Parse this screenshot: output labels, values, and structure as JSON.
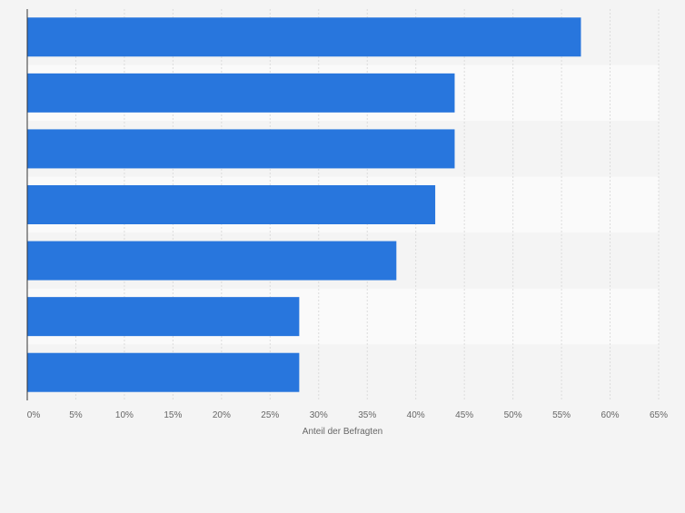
{
  "colors": {
    "background": "#f4f4f4",
    "plot_band_light": "#fafafa",
    "plot_band_dark": "#f4f4f4",
    "bar": "#2876dd",
    "grid": "#dcdcdc",
    "axis": "#333333",
    "tick_text": "#666666"
  },
  "chart_data": {
    "type": "bar",
    "orientation": "horizontal",
    "title": "",
    "xlabel": "Anteil der Befragten",
    "ylabel": "",
    "categories": [
      "",
      "",
      "",
      "",
      "",
      "",
      ""
    ],
    "values": [
      57,
      44,
      44,
      42,
      38,
      28,
      28
    ],
    "xlim": [
      0,
      65
    ],
    "xticks": [
      0,
      5,
      10,
      15,
      20,
      25,
      30,
      35,
      40,
      45,
      50,
      55,
      60,
      65
    ],
    "xtick_labels": [
      "0%",
      "5%",
      "10%",
      "15%",
      "20%",
      "25%",
      "30%",
      "35%",
      "40%",
      "45%",
      "50%",
      "55%",
      "60%",
      "65%"
    ],
    "unit": "%",
    "grid": true,
    "legend": "none"
  }
}
